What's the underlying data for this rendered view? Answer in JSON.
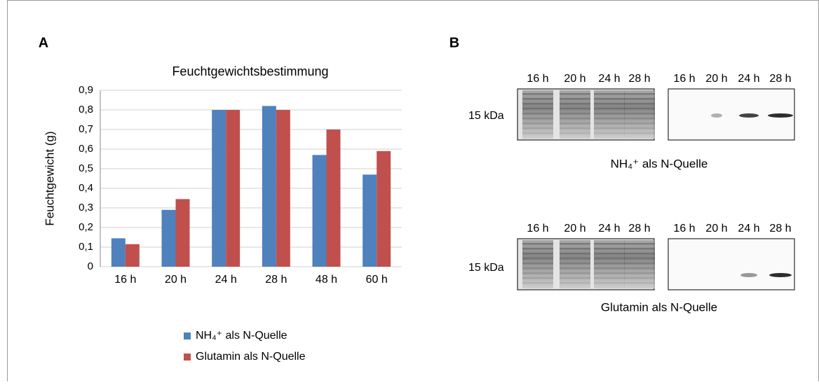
{
  "chart_data": {
    "type": "bar",
    "title": "Feuchtgewichtsbestimmung",
    "y_label": "Feuchtgewicht (g)",
    "categories": [
      "16 h",
      "20 h",
      "24 h",
      "28 h",
      "48 h",
      "60 h"
    ],
    "series": [
      {
        "name": "NH₄⁺ als N-Quelle",
        "color": "#4f81bd",
        "values": [
          0.145,
          0.29,
          0.8,
          0.82,
          0.57,
          0.47
        ]
      },
      {
        "name": "Glutamin als N-Quelle",
        "color": "#c0504d",
        "values": [
          0.115,
          0.345,
          0.8,
          0.8,
          0.7,
          0.59
        ]
      }
    ],
    "ylim": [
      0,
      0.9
    ],
    "yticks": [
      0,
      {
        "value": 0.1,
        "label": "0,1"
      },
      {
        "value": 0.2,
        "label": "0,2"
      },
      {
        "value": 0.3,
        "label": "0,3"
      },
      {
        "value": 0.4,
        "label": "0,4"
      },
      {
        "value": 0.5,
        "label": "0,5"
      },
      {
        "value": 0.6,
        "label": "0,6"
      },
      {
        "value": 0.7,
        "label": "0,7"
      },
      {
        "value": 0.8,
        "label": "0,8"
      },
      {
        "value": 0.9,
        "label": "0,9"
      }
    ],
    "grid": true,
    "legend": "bottom"
  },
  "panel_labels": [
    "A",
    "B"
  ],
  "blots": [
    {
      "lanes_left": [
        "16 h",
        "20 h",
        "24 h",
        "28 h"
      ],
      "lanes_right": [
        "16 h",
        "20 h",
        "24 h",
        "28 h"
      ],
      "marker": "15 kDa",
      "caption": "NH₄⁺ als N-Quelle"
    },
    {
      "lanes_left": [
        "16 h",
        "20 h",
        "24 h",
        "28 h"
      ],
      "lanes_right": [
        "16 h",
        "20 h",
        "24 h",
        "28 h"
      ],
      "marker": "15 kDa",
      "caption": "Glutamin als N-Quelle"
    }
  ]
}
